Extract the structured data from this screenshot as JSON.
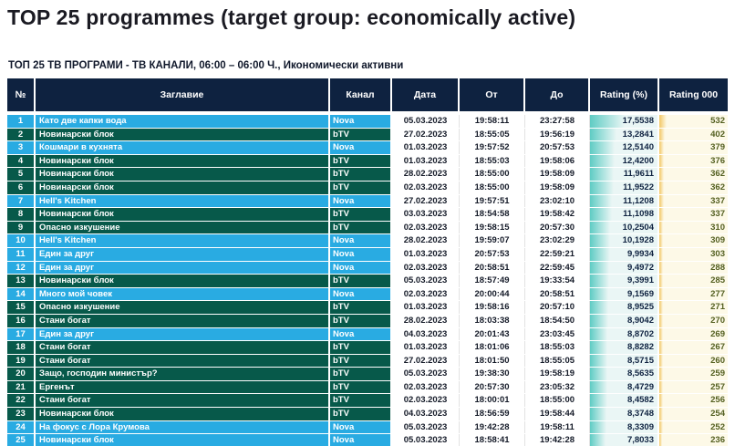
{
  "page": {
    "title": "TOP 25 programmes (target group: economically active)",
    "subtitle": "ТОП 25 ТВ ПРОГРАМИ - ТВ КАНАЛИ, 06:00 – 06:00 Ч., Икономически активни"
  },
  "colors": {
    "header_bg": "#0e2240",
    "channel_nova": "#29abe2",
    "channel_btv": "#07594a",
    "rating_bar": "#5fccc4",
    "rating_cell_bg": "#eaf6f5",
    "rating000_bar": "#f2c764",
    "rating000_cell_bg": "#fdf9e7"
  },
  "table": {
    "columns": [
      "№",
      "Заглавие",
      "Канал",
      "Дата",
      "От",
      "До",
      "Rating (%)",
      "Rating 000"
    ],
    "rows": [
      {
        "no": "1",
        "title": "Като две капки вода",
        "channel": "Nova",
        "date": "05.03.2023",
        "from": "19:58:11",
        "to": "23:27:58",
        "rating": "17,5538",
        "rating000": "532"
      },
      {
        "no": "2",
        "title": "Новинарски блок",
        "channel": "bTV",
        "date": "27.02.2023",
        "from": "18:55:05",
        "to": "19:56:19",
        "rating": "13,2841",
        "rating000": "402"
      },
      {
        "no": "3",
        "title": "Кошмари в кухнята",
        "channel": "Nova",
        "date": "01.03.2023",
        "from": "19:57:52",
        "to": "20:57:53",
        "rating": "12,5140",
        "rating000": "379"
      },
      {
        "no": "4",
        "title": "Новинарски блок",
        "channel": "bTV",
        "date": "01.03.2023",
        "from": "18:55:03",
        "to": "19:58:06",
        "rating": "12,4200",
        "rating000": "376"
      },
      {
        "no": "5",
        "title": "Новинарски блок",
        "channel": "bTV",
        "date": "28.02.2023",
        "from": "18:55:00",
        "to": "19:58:09",
        "rating": "11,9611",
        "rating000": "362"
      },
      {
        "no": "6",
        "title": "Новинарски блок",
        "channel": "bTV",
        "date": "02.03.2023",
        "from": "18:55:00",
        "to": "19:58:09",
        "rating": "11,9522",
        "rating000": "362"
      },
      {
        "no": "7",
        "title": "Hell's Kitchen",
        "channel": "Nova",
        "date": "27.02.2023",
        "from": "19:57:51",
        "to": "23:02:10",
        "rating": "11,1208",
        "rating000": "337"
      },
      {
        "no": "8",
        "title": "Новинарски блок",
        "channel": "bTV",
        "date": "03.03.2023",
        "from": "18:54:58",
        "to": "19:58:42",
        "rating": "11,1098",
        "rating000": "337"
      },
      {
        "no": "9",
        "title": "Опасно изкушение",
        "channel": "bTV",
        "date": "02.03.2023",
        "from": "19:58:15",
        "to": "20:57:30",
        "rating": "10,2504",
        "rating000": "310"
      },
      {
        "no": "10",
        "title": "Hell's Kitchen",
        "channel": "Nova",
        "date": "28.02.2023",
        "from": "19:59:07",
        "to": "23:02:29",
        "rating": "10,1928",
        "rating000": "309"
      },
      {
        "no": "11",
        "title": "Един за друг",
        "channel": "Nova",
        "date": "01.03.2023",
        "from": "20:57:53",
        "to": "22:59:21",
        "rating": "9,9934",
        "rating000": "303"
      },
      {
        "no": "12",
        "title": "Един за друг",
        "channel": "Nova",
        "date": "02.03.2023",
        "from": "20:58:51",
        "to": "22:59:45",
        "rating": "9,4972",
        "rating000": "288"
      },
      {
        "no": "13",
        "title": "Новинарски блок",
        "channel": "bTV",
        "date": "05.03.2023",
        "from": "18:57:49",
        "to": "19:33:54",
        "rating": "9,3991",
        "rating000": "285"
      },
      {
        "no": "14",
        "title": "Много мой човек",
        "channel": "Nova",
        "date": "02.03.2023",
        "from": "20:00:44",
        "to": "20:58:51",
        "rating": "9,1569",
        "rating000": "277"
      },
      {
        "no": "15",
        "title": "Опасно изкушение",
        "channel": "bTV",
        "date": "01.03.2023",
        "from": "19:58:16",
        "to": "20:57:10",
        "rating": "8,9525",
        "rating000": "271"
      },
      {
        "no": "16",
        "title": "Стани богат",
        "channel": "bTV",
        "date": "28.02.2023",
        "from": "18:03:38",
        "to": "18:54:50",
        "rating": "8,9042",
        "rating000": "270"
      },
      {
        "no": "17",
        "title": "Един за друг",
        "channel": "Nova",
        "date": "04.03.2023",
        "from": "20:01:43",
        "to": "23:03:45",
        "rating": "8,8702",
        "rating000": "269"
      },
      {
        "no": "18",
        "title": "Стани богат",
        "channel": "bTV",
        "date": "01.03.2023",
        "from": "18:01:06",
        "to": "18:55:03",
        "rating": "8,8282",
        "rating000": "267"
      },
      {
        "no": "19",
        "title": "Стани богат",
        "channel": "bTV",
        "date": "27.02.2023",
        "from": "18:01:50",
        "to": "18:55:05",
        "rating": "8,5715",
        "rating000": "260"
      },
      {
        "no": "20",
        "title": "Защо, господин министър?",
        "channel": "bTV",
        "date": "05.03.2023",
        "from": "19:38:30",
        "to": "19:58:19",
        "rating": "8,5635",
        "rating000": "259"
      },
      {
        "no": "21",
        "title": "Ергенът",
        "channel": "bTV",
        "date": "02.03.2023",
        "from": "20:57:30",
        "to": "23:05:32",
        "rating": "8,4729",
        "rating000": "257"
      },
      {
        "no": "22",
        "title": "Стани богат",
        "channel": "bTV",
        "date": "02.03.2023",
        "from": "18:00:01",
        "to": "18:55:00",
        "rating": "8,4582",
        "rating000": "256"
      },
      {
        "no": "23",
        "title": "Новинарски блок",
        "channel": "bTV",
        "date": "04.03.2023",
        "from": "18:56:59",
        "to": "19:58:44",
        "rating": "8,3748",
        "rating000": "254"
      },
      {
        "no": "24",
        "title": "На фокус с Лора Крумова",
        "channel": "Nova",
        "date": "05.03.2023",
        "from": "19:42:28",
        "to": "19:58:11",
        "rating": "8,3309",
        "rating000": "252"
      },
      {
        "no": "25",
        "title": "Новинарски блок",
        "channel": "Nova",
        "date": "05.03.2023",
        "from": "18:58:41",
        "to": "19:42:28",
        "rating": "7,8033",
        "rating000": "236"
      }
    ]
  }
}
